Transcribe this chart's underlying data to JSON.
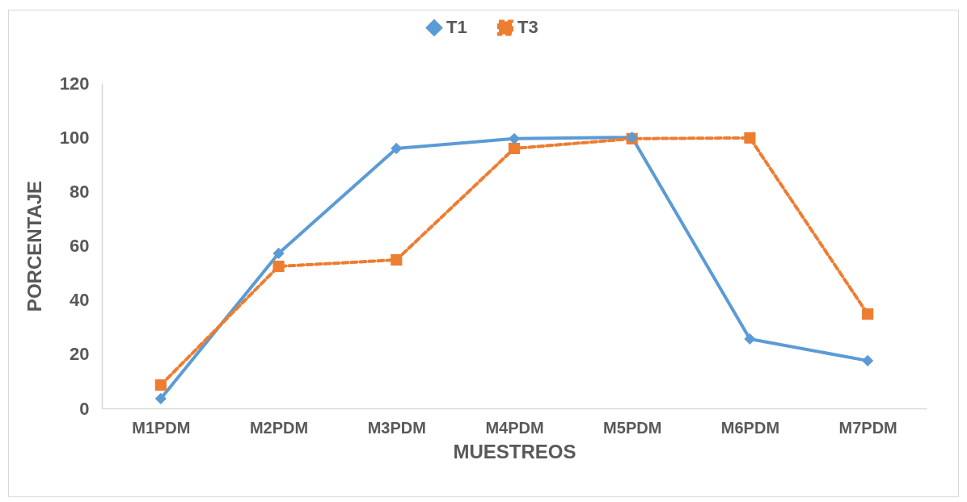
{
  "chart_data": {
    "type": "line",
    "xlabel": "MUESTREOS",
    "ylabel": "PORCENTAJE",
    "categories": [
      "M1PDM",
      "M2PDM",
      "M3PDM",
      "M4PDM",
      "M5PDM",
      "M6PDM",
      "M7PDM"
    ],
    "series": [
      {
        "name": "T1",
        "color": "#5b9bd5",
        "marker": "diamond",
        "line_style": "solid",
        "values": [
          3.6,
          57.2,
          95.9,
          99.5,
          100,
          25.6,
          17.6
        ]
      },
      {
        "name": "T3",
        "color": "#ed7d31",
        "marker": "square",
        "line_style": "dashed",
        "values": [
          8.6,
          52.4,
          54.8,
          95.9,
          99.5,
          99.8,
          34.8
        ]
      }
    ],
    "ylim": [
      0,
      120
    ],
    "yticks": [
      0,
      20,
      40,
      60,
      80,
      100,
      120
    ],
    "grid": false,
    "legend": "top"
  }
}
